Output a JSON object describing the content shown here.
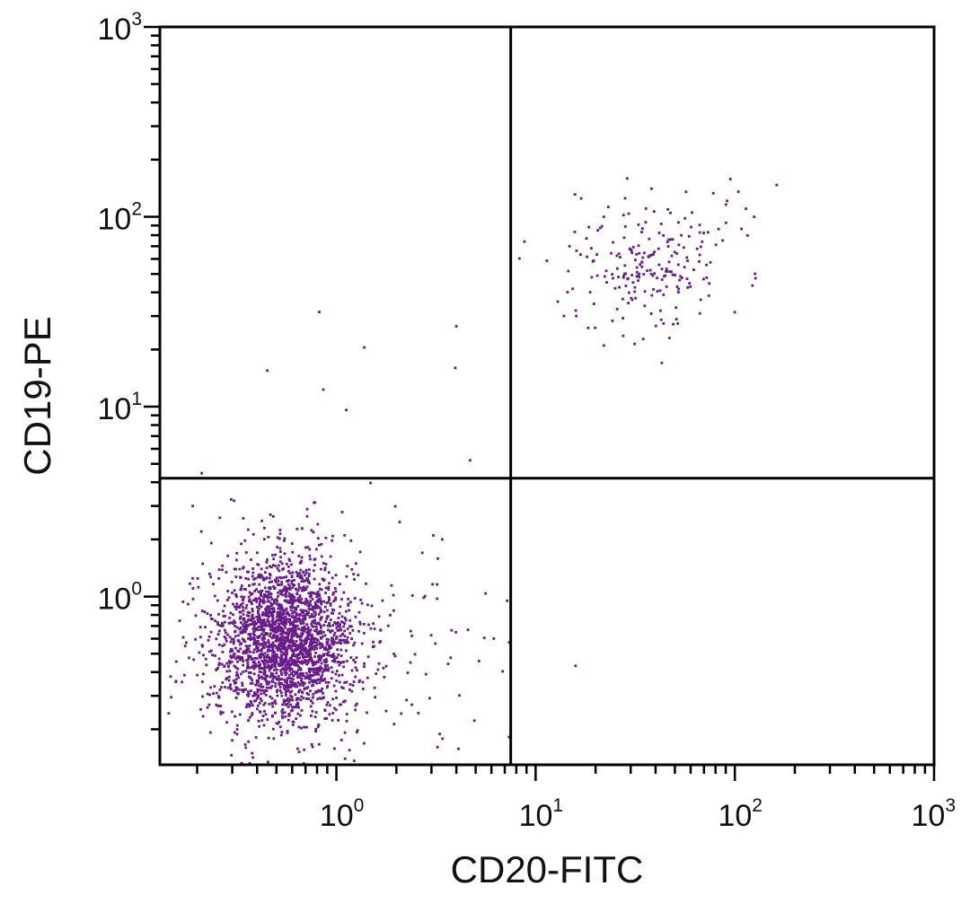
{
  "chart_data": {
    "type": "scatter",
    "title": "",
    "xlabel": "CD20-FITC",
    "ylabel": "CD19-PE",
    "x_scale": "log",
    "y_scale": "log",
    "xlim": [
      0.13,
      1000
    ],
    "ylim": [
      0.13,
      1000
    ],
    "x_ticks": [
      {
        "base": "10",
        "exp": "0",
        "value": 1
      },
      {
        "base": "10",
        "exp": "1",
        "value": 10
      },
      {
        "base": "10",
        "exp": "2",
        "value": 100
      },
      {
        "base": "10",
        "exp": "3",
        "value": 1000
      }
    ],
    "y_ticks": [
      {
        "base": "10",
        "exp": "0",
        "value": 1
      },
      {
        "base": "10",
        "exp": "1",
        "value": 10
      },
      {
        "base": "10",
        "exp": "2",
        "value": 100
      },
      {
        "base": "10",
        "exp": "3",
        "value": 1000
      }
    ],
    "quadrant_gates": {
      "x": 7.5,
      "y": 4.2
    },
    "point_color": "#6a1b8a",
    "axis_color": "#000000",
    "populations": [
      {
        "label": "lower-left cluster",
        "center": [
          0.55,
          0.58
        ],
        "log_sd": [
          0.17,
          0.21
        ],
        "count": 2200
      },
      {
        "label": "lower-left scatter",
        "center": [
          0.75,
          0.6
        ],
        "log_sd": [
          0.42,
          0.34
        ],
        "count": 280
      },
      {
        "label": "upper-right cluster",
        "center": [
          38,
          58
        ],
        "log_sd": [
          0.2,
          0.18
        ],
        "count": 220
      }
    ],
    "outlier_points": [
      [
        0.45,
        15.5
      ],
      [
        0.82,
        31.5
      ],
      [
        0.86,
        12.3
      ],
      [
        1.12,
        9.6
      ],
      [
        1.38,
        20.5
      ],
      [
        4.0,
        26.5
      ],
      [
        3.95,
        16.0
      ],
      [
        0.19,
        3.0
      ],
      [
        0.26,
        2.6
      ],
      [
        1.1,
        2.1
      ],
      [
        3.4,
        2.0
      ],
      [
        2.7,
        1.7
      ],
      [
        7.2,
        0.95
      ],
      [
        0.21,
        2.2
      ],
      [
        0.6,
        1.9
      ],
      [
        16.0,
        30.0
      ],
      [
        22.0,
        100.0
      ],
      [
        95.0,
        158.0
      ],
      [
        162.0,
        147.0
      ],
      [
        78.0,
        133.0
      ],
      [
        43.0,
        17.0
      ],
      [
        22.0,
        21.0
      ],
      [
        125.0,
        100.0
      ]
    ]
  }
}
